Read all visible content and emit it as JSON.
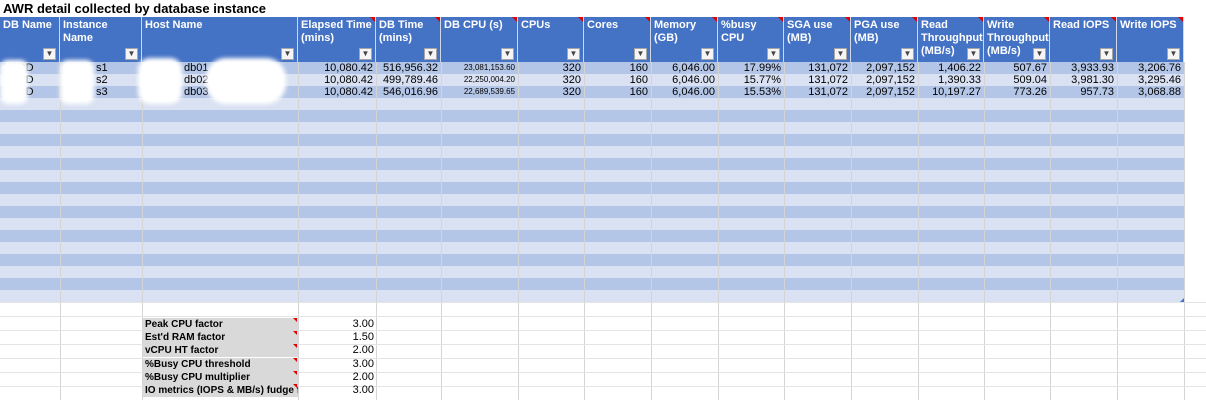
{
  "title": "AWR detail collected by database instance",
  "headers": [
    {
      "label": "DB Name"
    },
    {
      "label": "Instance Name"
    },
    {
      "label": "Host Name"
    },
    {
      "label": "Elapsed Time (mins)"
    },
    {
      "label": "DB Time (mins)"
    },
    {
      "label": "DB CPU (s)"
    },
    {
      "label": "CPUs"
    },
    {
      "label": "Cores"
    },
    {
      "label": "Memory (GB)"
    },
    {
      "label": "%busy CPU"
    },
    {
      "label": "SGA use (MB)"
    },
    {
      "label": "PGA use (MB)"
    },
    {
      "label": "Read Throughput (MB/s)"
    },
    {
      "label": "Write Throughput (MB/s)"
    },
    {
      "label": "Read IOPS"
    },
    {
      "label": "Write IOPS"
    }
  ],
  "filter_icon": "dropdown-arrow",
  "rows": [
    [
      "XPRD",
      "s1",
      "db01",
      "10,080.42",
      "516,956.32",
      "23,081,153.60",
      "320",
      "160",
      "6,046.00",
      "17.99%",
      "131,072",
      "2,097,152",
      "1,406.22",
      "507.67",
      "3,933.93",
      "3,206.76"
    ],
    [
      "XPRD",
      "s2",
      "db02",
      "10,080.42",
      "499,789.46",
      "22,250,004.20",
      "320",
      "160",
      "6,046.00",
      "15.77%",
      "131,072",
      "2,097,152",
      "1,390.33",
      "509.04",
      "3,981.30",
      "3,295.46"
    ],
    [
      "XPRD",
      "s3",
      "db03",
      "10,080.42",
      "546,016.96",
      "22,689,539.65",
      "320",
      "160",
      "6,046.00",
      "15.53%",
      "131,072",
      "2,097,152",
      "10,197.27",
      "773.26",
      "957.73",
      "3,068.88"
    ]
  ],
  "factors": [
    {
      "label": "Peak CPU factor",
      "value": "3.00"
    },
    {
      "label": "Est'd RAM factor",
      "value": "1.50"
    },
    {
      "label": "vCPU HT factor",
      "value": "2.00"
    },
    {
      "label": "%Busy CPU threshold",
      "value": "3.00"
    },
    {
      "label": "%Busy CPU multiplier",
      "value": "2.00"
    },
    {
      "label": "IO metrics (IOPS & MB/s) fudge factor",
      "value": "3.00"
    }
  ],
  "colors": {
    "header": "#4472C4",
    "band_dark": "#B4C6E7",
    "band_light": "#D9E1F2",
    "factor_bg": "#D9D9D9",
    "comment_mark": "#E00000"
  }
}
